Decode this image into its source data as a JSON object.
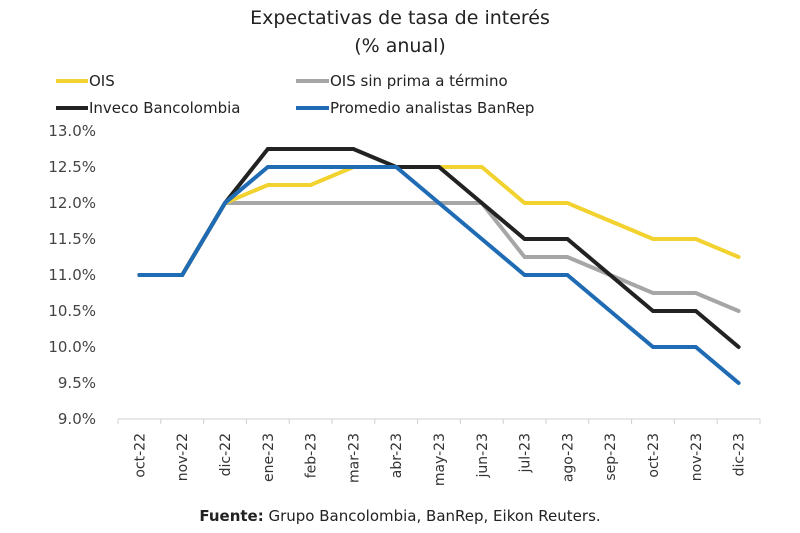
{
  "chart_data": {
    "type": "line",
    "title": "Expectativas de tasa de interés",
    "subtitle": "(% anual)",
    "xlabel": "",
    "ylabel": "",
    "ylim": [
      9.0,
      13.0
    ],
    "yticks": [
      9.0,
      9.5,
      10.0,
      10.5,
      11.0,
      11.5,
      12.0,
      12.5,
      13.0
    ],
    "ytick_labels": [
      "9.0%",
      "9.5%",
      "10.0%",
      "10.5%",
      "11.0%",
      "11.5%",
      "12.0%",
      "12.5%",
      "13.0%"
    ],
    "grid": false,
    "legend_position": "top",
    "categories": [
      "oct-22",
      "nov-22",
      "dic-22",
      "ene-23",
      "feb-23",
      "mar-23",
      "abr-23",
      "may-23",
      "jun-23",
      "jul-23",
      "ago-23",
      "sep-23",
      "oct-23",
      "nov-23",
      "dic-23"
    ],
    "series": [
      {
        "name": "OIS",
        "color": "#f2d22e",
        "values": [
          11,
          11,
          12,
          12.25,
          12.25,
          12.5,
          12.5,
          12.5,
          12.5,
          12,
          12,
          11.75,
          11.5,
          11.5,
          11.25
        ]
      },
      {
        "name": "OIS sin prima a término",
        "color": "#a6a6a6",
        "values": [
          11,
          11,
          12,
          12,
          12,
          12,
          12,
          12,
          12,
          11.25,
          11.25,
          11,
          10.75,
          10.75,
          10.5
        ]
      },
      {
        "name": "Inveco Bancolombia",
        "color": "#222222",
        "values": [
          11,
          11,
          12,
          12.75,
          12.75,
          12.75,
          12.5,
          12.5,
          12,
          11.5,
          11.5,
          11,
          10.5,
          10.5,
          10
        ]
      },
      {
        "name": "Promedio analistas BanRep",
        "color": "#1f6cb5",
        "values": [
          11,
          11,
          12,
          12.5,
          12.5,
          12.5,
          12.5,
          12,
          11.5,
          11,
          11,
          10.5,
          10,
          10,
          9.5
        ]
      }
    ]
  },
  "footer": {
    "label": "Fuente:",
    "text": " Grupo Bancolombia, BanRep, Eikon Reuters."
  }
}
